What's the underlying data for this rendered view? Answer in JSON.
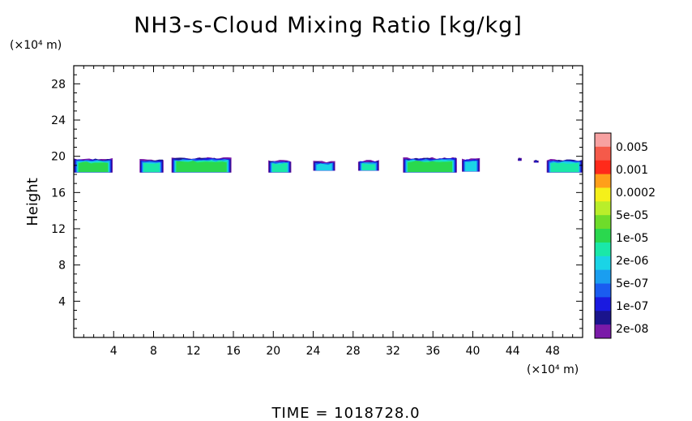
{
  "chart_data": {
    "type": "heatmap",
    "title": "NH3-s-Cloud Mixing Ratio [kg/kg]",
    "xlabel": "",
    "ylabel": "Height",
    "x_unit": "(×10⁴ m)",
    "y_unit": "(×10⁴ m)",
    "xlim": [
      0,
      51
    ],
    "ylim": [
      0,
      30
    ],
    "x_ticks": [
      4,
      8,
      12,
      16,
      20,
      24,
      28,
      32,
      36,
      40,
      44,
      48
    ],
    "y_ticks": [
      4,
      8,
      12,
      16,
      20,
      24,
      28
    ],
    "grid": false,
    "colorbar": {
      "labels": [
        "0.005",
        "0.001",
        "0.0002",
        "5e-05",
        "1e-05",
        "2e-06",
        "5e-07",
        "1e-07",
        "2e-08"
      ],
      "colors": [
        "#f7a1a1",
        "#f55a4a",
        "#ff2a1a",
        "#ff9f1a",
        "#f5f01a",
        "#b9ee2a",
        "#6edc2a",
        "#2ad84e",
        "#1ae8a8",
        "#1ad4e6",
        "#1a9ef0",
        "#1a5cf0",
        "#1a1ae0",
        "#1a148c",
        "#7a1aa8"
      ]
    },
    "cloud_patches": [
      {
        "x0": 0.0,
        "x1": 3.9,
        "y_bottom": 18.2,
        "y_top": 19.7,
        "core_level": 7
      },
      {
        "x0": 6.6,
        "x1": 9.0,
        "y_bottom": 18.2,
        "y_top": 19.6,
        "core_level": 8
      },
      {
        "x0": 9.8,
        "x1": 15.8,
        "y_bottom": 18.2,
        "y_top": 19.8,
        "core_level": 7
      },
      {
        "x0": 19.5,
        "x1": 21.8,
        "y_bottom": 18.2,
        "y_top": 19.5,
        "core_level": 8
      },
      {
        "x0": 24.0,
        "x1": 26.2,
        "y_bottom": 18.4,
        "y_top": 19.4,
        "core_level": 9
      },
      {
        "x0": 28.5,
        "x1": 30.6,
        "y_bottom": 18.4,
        "y_top": 19.5,
        "core_level": 8
      },
      {
        "x0": 33.0,
        "x1": 38.4,
        "y_bottom": 18.2,
        "y_top": 19.8,
        "core_level": 7
      },
      {
        "x0": 38.9,
        "x1": 40.7,
        "y_bottom": 18.3,
        "y_top": 19.7,
        "core_level": 9
      },
      {
        "x0": 44.5,
        "x1": 44.9,
        "y_bottom": 19.5,
        "y_top": 19.8,
        "core_level": 12
      },
      {
        "x0": 46.1,
        "x1": 46.6,
        "y_bottom": 19.3,
        "y_top": 19.6,
        "core_level": 12
      },
      {
        "x0": 47.4,
        "x1": 51.0,
        "y_bottom": 18.2,
        "y_top": 19.6,
        "core_level": 8
      }
    ]
  },
  "footer": {
    "time_label": "TIME  =  1018728.0"
  }
}
